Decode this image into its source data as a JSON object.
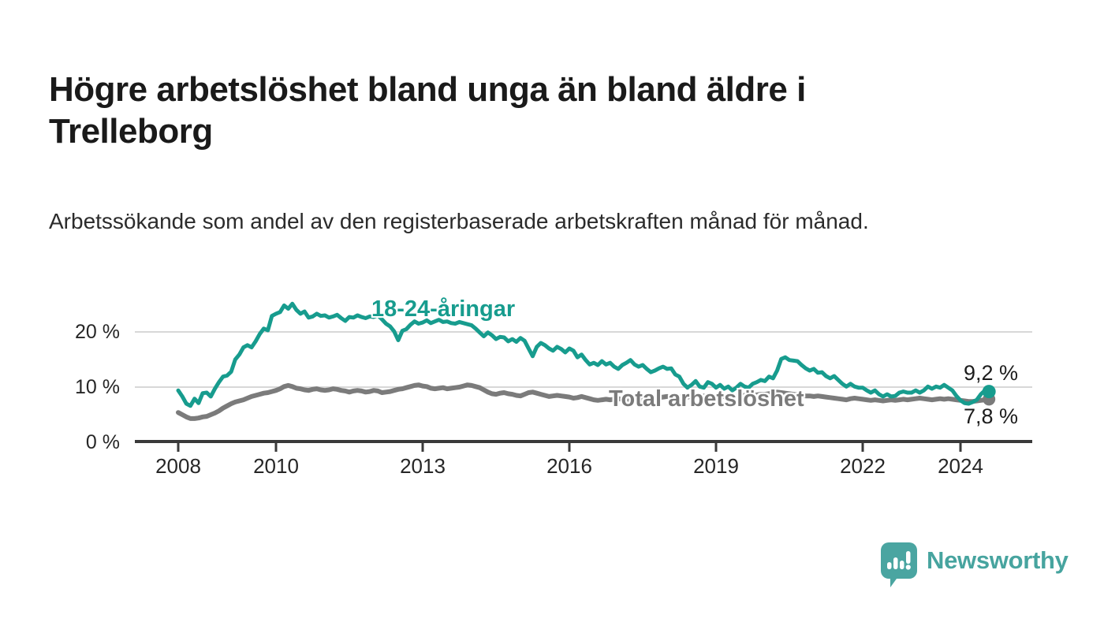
{
  "header": {
    "title": "Högre arbetslöshet bland unga än bland äldre i Trelleborg",
    "subtitle": "Arbetssökande som andel av den registerbaserade arbetskraften månad för månad."
  },
  "chart": {
    "y_tick_labels": [
      "0 %",
      "10 %",
      "20 %"
    ],
    "x_tick_labels": [
      "2008",
      "2010",
      "2013",
      "2016",
      "2019",
      "2022",
      "2024"
    ],
    "series_label_young": "18-24-åringar",
    "series_label_total": "Total arbetslöshet",
    "end_label_young": "9,2 %",
    "end_label_total": "7,8 %",
    "colors": {
      "young_line": "#179c8e",
      "total_line": "#7b7b7b",
      "grid": "#d8d8d8",
      "axis": "#3a3a3a"
    }
  },
  "chart_data": {
    "type": "line",
    "title": "Högre arbetslöshet bland unga än bland äldre i Trelleborg",
    "subtitle": "Arbetssökande som andel av den registerbaserade arbetskraften månad för månad.",
    "xlabel": "",
    "ylabel": "%",
    "grid": "horizontal",
    "legend_position": "inline-labels",
    "x_start_year": 2008,
    "x_step_months": 1,
    "x_axis_ticks": [
      2008,
      2010,
      2013,
      2016,
      2019,
      2022,
      2024
    ],
    "y_ticks_pct": [
      0,
      10,
      20
    ],
    "ylim": [
      0,
      27
    ],
    "xlim": [
      2007.1,
      2025.5
    ],
    "series": [
      {
        "name": "18-24-åringar",
        "color": "#179c8e",
        "line_width": 5,
        "end_dot_radius": 8.5,
        "end_value": 9.2,
        "end_value_label": "9,2 %",
        "values": [
          9.4,
          8.3,
          7.0,
          6.6,
          7.9,
          7.1,
          8.9,
          9.0,
          8.3,
          9.7,
          10.9,
          11.9,
          12.1,
          12.8,
          15.0,
          15.9,
          17.2,
          17.6,
          17.2,
          18.3,
          19.6,
          20.6,
          20.3,
          22.9,
          23.3,
          23.6,
          24.8,
          24.2,
          25.1,
          24.0,
          23.3,
          23.7,
          22.6,
          22.8,
          23.3,
          22.9,
          23.0,
          22.6,
          22.8,
          23.1,
          22.5,
          22.0,
          22.7,
          22.6,
          23.0,
          22.7,
          22.5,
          22.8,
          22.7,
          23.0,
          22.3,
          21.5,
          21.0,
          20.1,
          18.5,
          20.2,
          20.5,
          21.3,
          21.9,
          21.5,
          21.7,
          22.1,
          21.6,
          21.9,
          22.2,
          21.8,
          21.9,
          21.6,
          21.5,
          21.8,
          21.6,
          21.4,
          21.2,
          20.6,
          19.9,
          19.2,
          19.9,
          19.4,
          18.7,
          19.1,
          19.0,
          18.3,
          18.7,
          18.2,
          18.9,
          18.4,
          17.0,
          15.6,
          17.3,
          18.0,
          17.6,
          17.0,
          16.6,
          17.3,
          16.9,
          16.3,
          17.0,
          16.6,
          15.4,
          15.9,
          14.9,
          14.1,
          14.4,
          14.0,
          14.7,
          14.1,
          14.4,
          13.7,
          13.3,
          14.0,
          14.4,
          14.9,
          14.1,
          13.7,
          14.0,
          13.3,
          12.7,
          13.0,
          13.4,
          13.7,
          13.3,
          13.4,
          12.3,
          11.9,
          10.6,
          9.9,
          10.4,
          11.1,
          10.1,
          9.9,
          10.9,
          10.6,
          9.9,
          10.4,
          9.7,
          10.1,
          9.4,
          9.9,
          10.6,
          10.1,
          9.9,
          10.6,
          10.9,
          11.3,
          11.1,
          11.9,
          11.6,
          13.0,
          15.1,
          15.4,
          14.9,
          14.8,
          14.7,
          14.0,
          13.4,
          13.0,
          13.3,
          12.6,
          12.7,
          12.0,
          11.6,
          12.0,
          11.3,
          10.6,
          10.1,
          10.6,
          10.1,
          9.9,
          9.9,
          9.4,
          9.0,
          9.4,
          8.7,
          8.3,
          8.7,
          8.3,
          8.4,
          9.0,
          9.2,
          9.0,
          9.0,
          9.4,
          9.0,
          9.4,
          10.1,
          9.7,
          10.1,
          9.9,
          10.4,
          9.9,
          9.4,
          8.4,
          7.6,
          7.1,
          7.0,
          7.3,
          7.7,
          8.7,
          9.4,
          9.2
        ]
      },
      {
        "name": "Total arbetslöshet",
        "color": "#7b7b7b",
        "line_width": 6,
        "end_dot_radius": 8,
        "end_value": 7.8,
        "end_value_label": "7,8 %",
        "values": [
          5.4,
          5.0,
          4.6,
          4.3,
          4.3,
          4.4,
          4.6,
          4.7,
          5.0,
          5.3,
          5.7,
          6.2,
          6.6,
          7.0,
          7.3,
          7.5,
          7.7,
          8.0,
          8.3,
          8.5,
          8.7,
          8.9,
          9.0,
          9.2,
          9.4,
          9.7,
          10.1,
          10.3,
          10.1,
          9.8,
          9.7,
          9.5,
          9.4,
          9.6,
          9.7,
          9.5,
          9.4,
          9.5,
          9.7,
          9.6,
          9.4,
          9.3,
          9.1,
          9.3,
          9.4,
          9.3,
          9.1,
          9.2,
          9.4,
          9.3,
          9.0,
          9.1,
          9.2,
          9.4,
          9.6,
          9.7,
          9.9,
          10.1,
          10.3,
          10.4,
          10.2,
          10.1,
          9.8,
          9.7,
          9.8,
          9.9,
          9.7,
          9.8,
          9.9,
          10.0,
          10.2,
          10.4,
          10.3,
          10.1,
          9.9,
          9.5,
          9.1,
          8.8,
          8.7,
          8.9,
          9.0,
          8.8,
          8.7,
          8.5,
          8.4,
          8.7,
          9.0,
          9.1,
          8.9,
          8.7,
          8.5,
          8.3,
          8.4,
          8.5,
          8.4,
          8.3,
          8.2,
          8.0,
          8.1,
          8.3,
          8.1,
          7.9,
          7.7,
          7.6,
          7.7,
          7.8,
          7.7,
          7.8,
          7.9,
          7.8,
          7.7,
          7.8,
          7.9,
          7.8,
          7.7,
          7.8,
          7.9,
          8.0,
          8.1,
          8.2,
          8.3,
          8.2,
          8.1,
          8.2,
          8.3,
          8.2,
          8.3,
          8.4,
          8.3,
          8.4,
          8.3,
          8.4,
          8.3,
          8.4,
          8.3,
          8.4,
          8.4,
          8.3,
          8.4,
          8.5,
          8.4,
          8.5,
          8.6,
          8.7,
          8.7,
          8.8,
          9.0,
          9.1,
          9.0,
          8.9,
          8.8,
          8.7,
          8.6,
          8.5,
          8.4,
          8.4,
          8.3,
          8.4,
          8.3,
          8.2,
          8.1,
          8.0,
          7.9,
          7.8,
          7.7,
          7.9,
          8.0,
          7.9,
          7.8,
          7.7,
          7.6,
          7.7,
          7.6,
          7.5,
          7.6,
          7.7,
          7.6,
          7.7,
          7.8,
          7.7,
          7.8,
          7.9,
          8.0,
          7.9,
          7.8,
          7.7,
          7.8,
          7.9,
          7.8,
          7.9,
          7.8,
          7.7,
          7.6,
          7.5,
          7.4,
          7.4,
          7.5,
          7.6,
          7.7,
          7.8
        ]
      }
    ]
  },
  "footer": {
    "brand": "Newsworthy",
    "brand_color": "#47a49f"
  }
}
